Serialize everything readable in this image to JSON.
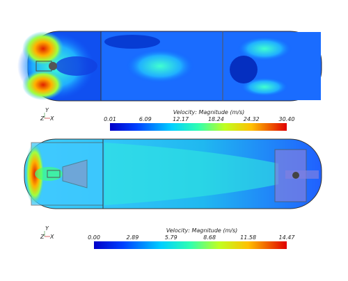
{
  "panels": [
    {
      "axes": {
        "y": "Y",
        "z": "Z",
        "x": "X"
      },
      "legend_title": "Velocity: Magnitude (m/s)",
      "ticks": [
        "0.01",
        "6.09",
        "12.17",
        "18.24",
        "24.32",
        "30.40"
      ]
    },
    {
      "axes": {
        "y": "Y",
        "z": "Z",
        "x": "X"
      },
      "legend_title": "Velocity: Magnitude (m/s)",
      "ticks": [
        "0.00",
        "2.89",
        "5.79",
        "8.68",
        "11.58",
        "14.47"
      ]
    }
  ]
}
